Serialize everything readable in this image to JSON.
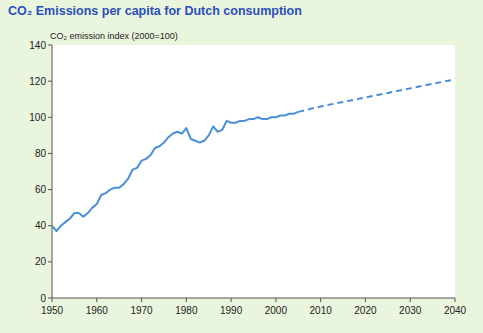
{
  "chart_data": {
    "type": "line",
    "title": "CO₂ Emissions per capita for Dutch consumption",
    "y_label": "CO₂ emission index (2000=100)",
    "x": [
      1950,
      1951,
      1952,
      1953,
      1954,
      1955,
      1956,
      1957,
      1958,
      1959,
      1960,
      1961,
      1962,
      1963,
      1964,
      1965,
      1966,
      1967,
      1968,
      1969,
      1970,
      1971,
      1972,
      1973,
      1974,
      1975,
      1976,
      1977,
      1978,
      1979,
      1980,
      1981,
      1982,
      1983,
      1984,
      1985,
      1986,
      1987,
      1988,
      1989,
      1990,
      1991,
      1992,
      1993,
      1994,
      1995,
      1996,
      1997,
      1998,
      1999,
      2000,
      2001,
      2002,
      2003,
      2004,
      2005,
      2010,
      2020,
      2030,
      2040
    ],
    "series": [
      {
        "color": "#4a8fd8",
        "line_style": "solid",
        "values": [
          40,
          37,
          40,
          42,
          44,
          47,
          47,
          45,
          47,
          50,
          52,
          57,
          58,
          60,
          61,
          61,
          63,
          66,
          71,
          72,
          76,
          77,
          79,
          83,
          84,
          86,
          89,
          91,
          92,
          91,
          94,
          88,
          87,
          86,
          87,
          90,
          95,
          92,
          93,
          98,
          97,
          97,
          98,
          98,
          99,
          99,
          100,
          99,
          99,
          100,
          100,
          101,
          101,
          102,
          102,
          103,
          null,
          null,
          null,
          null
        ]
      },
      {
        "color": "#4a8fd8",
        "line_style": "dashed",
        "values": [
          null,
          null,
          null,
          null,
          null,
          null,
          null,
          null,
          null,
          null,
          null,
          null,
          null,
          null,
          null,
          null,
          null,
          null,
          null,
          null,
          null,
          null,
          null,
          null,
          null,
          null,
          null,
          null,
          null,
          null,
          null,
          null,
          null,
          null,
          null,
          null,
          null,
          null,
          null,
          null,
          null,
          null,
          null,
          null,
          null,
          null,
          null,
          null,
          null,
          null,
          null,
          null,
          null,
          null,
          null,
          103,
          106,
          111,
          116,
          121
        ]
      }
    ],
    "xlim": [
      1950,
      2040
    ],
    "xticks": [
      1950,
      1960,
      1970,
      1980,
      1990,
      2000,
      2010,
      2020,
      2030,
      2040
    ],
    "ylim": [
      0,
      140
    ],
    "yticks": [
      0,
      20,
      40,
      60,
      80,
      100,
      120,
      140
    ],
    "grid": false
  }
}
